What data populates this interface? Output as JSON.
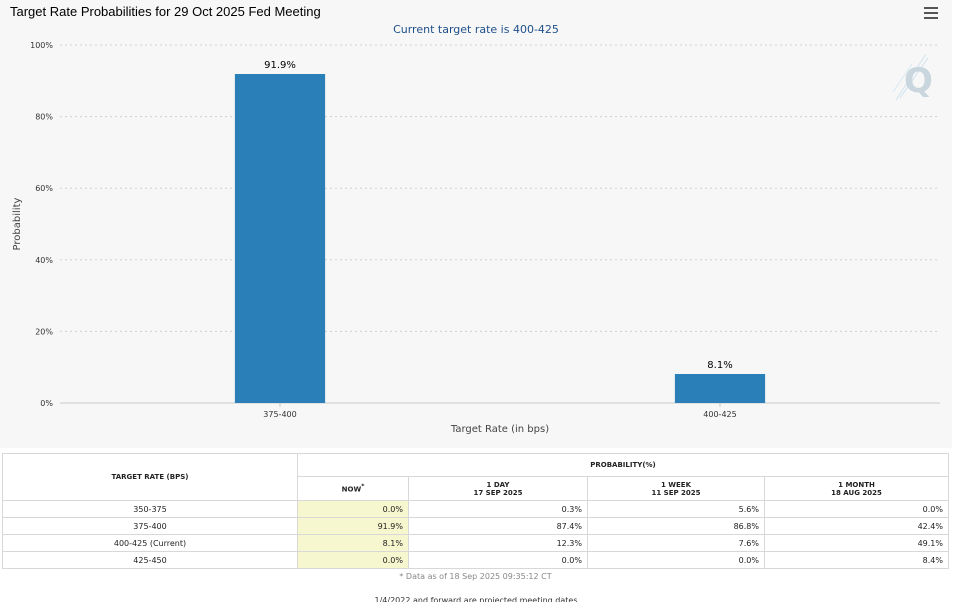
{
  "chart_data": {
    "type": "bar",
    "title": "Target Rate Probabilities for 29 Oct 2025 Fed Meeting",
    "subtitle": "Current target rate is 400-425",
    "xlabel": "Target Rate (in bps)",
    "ylabel": "Probability",
    "categories": [
      "375-400",
      "400-425"
    ],
    "values": [
      91.9,
      8.1
    ],
    "data_labels": [
      "91.9%",
      "8.1%"
    ],
    "ylim": [
      0,
      100
    ],
    "yticks": [
      0,
      20,
      40,
      60,
      80,
      100
    ],
    "ytick_labels": [
      "0%",
      "20%",
      "40%",
      "60%",
      "80%",
      "100%"
    ],
    "grid": true,
    "bar_color": "#2b7fb8"
  },
  "menu": {
    "icon": "hamburger-menu-icon"
  },
  "watermark": {
    "icon": "q-logo-icon",
    "letter": "Q"
  },
  "table": {
    "rate_header": "TARGET RATE (BPS)",
    "prob_header": "PROBABILITY(%)",
    "columns": [
      {
        "title": "NOW",
        "marker": "*",
        "date": ""
      },
      {
        "title": "1 DAY",
        "date": "17 SEP 2025"
      },
      {
        "title": "1 WEEK",
        "date": "11 SEP 2025"
      },
      {
        "title": "1 MONTH",
        "date": "18 AUG 2025"
      }
    ],
    "rows": [
      {
        "rate": "350-375",
        "values": [
          "0.0%",
          "0.3%",
          "5.6%",
          "0.0%"
        ]
      },
      {
        "rate": "375-400",
        "values": [
          "91.9%",
          "87.4%",
          "86.8%",
          "42.4%"
        ]
      },
      {
        "rate": "400-425 (Current)",
        "values": [
          "8.1%",
          "12.3%",
          "7.6%",
          "49.1%"
        ]
      },
      {
        "rate": "425-450",
        "values": [
          "0.0%",
          "0.0%",
          "0.0%",
          "8.4%"
        ]
      }
    ],
    "footnote": "* Data as of 18 Sep 2025 09:35:12 CT"
  },
  "bottom_note": "1/4/2022 and forward are projected meeting dates"
}
